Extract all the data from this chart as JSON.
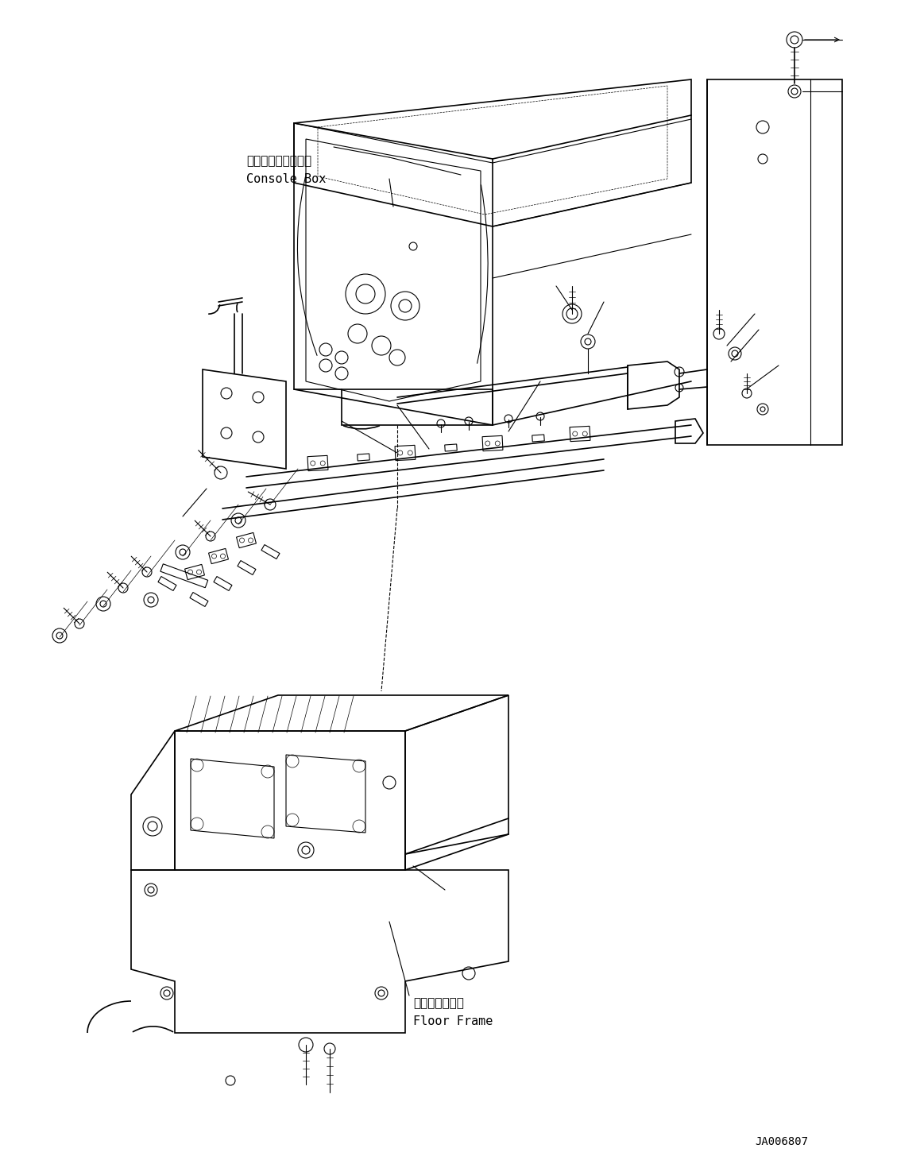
{
  "bg_color": "#ffffff",
  "line_color": "#000000",
  "fig_width": 11.63,
  "fig_height": 14.6,
  "dpi": 100,
  "label_console_jp": "コンソールボックス",
  "label_console_en": "Console Box",
  "label_floor_jp": "フロアフレーム",
  "label_floor_en": "Floor Frame",
  "label_doc": "JA006807"
}
